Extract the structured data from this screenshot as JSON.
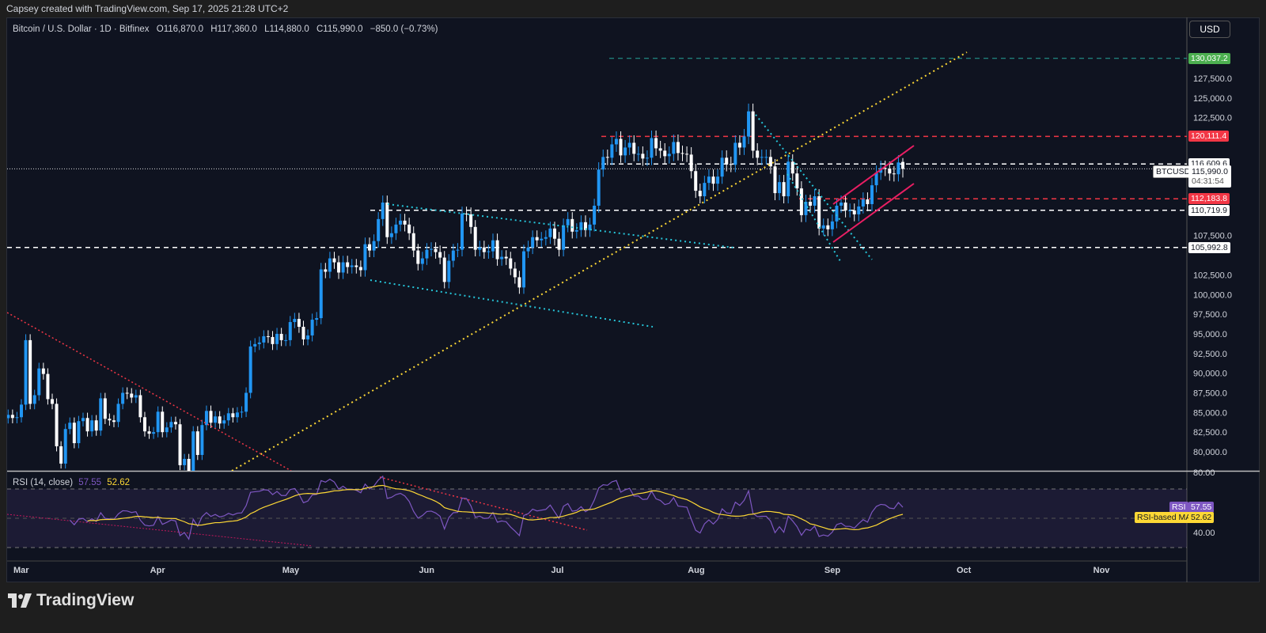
{
  "credit": "Capsey created with TradingView.com, Sep 17, 2025 21:28 UTC+2",
  "legend": {
    "symbol": "Bitcoin / U.S. Dollar · 1D · Bitfinex",
    "open": "O116,870.0",
    "high": "H117,360.0",
    "low": "L114,880.0",
    "close": "C115,990.0",
    "change": "−850.0 (−0.73%)"
  },
  "currency_button": "USD",
  "rsi_legend": {
    "title": "RSI (14, close)",
    "rsi": "57.55",
    "ma": "52.62"
  },
  "price_tag": {
    "symbol": "BTCUSD",
    "price": "115,990.0",
    "countdown": "04:31:54"
  },
  "rsi_tags": {
    "rsi_label": "RSI",
    "rsi_value": "57.55",
    "ma_label": "RSI-based MA",
    "ma_value": "52.62"
  },
  "levels": [
    {
      "price": 130037.2,
      "label": "130,037.2",
      "color": "#4caf50"
    },
    {
      "price": 120111.4,
      "label": "120,111.4",
      "color": "#f23645"
    },
    {
      "price": 116609.6,
      "label": "116,609.6",
      "color": "#ffffff"
    },
    {
      "price": 112183.8,
      "label": "112,183.8",
      "color": "#f23645"
    },
    {
      "price": 110719.9,
      "label": "110,719.9",
      "color": "#ffffff"
    },
    {
      "price": 105992.8,
      "label": "105,992.8",
      "color": "#ffffff"
    }
  ],
  "brand": "TradingView",
  "colors": {
    "up": "#2196f3",
    "down": "#ffffff",
    "rsi": "#7e57c2",
    "rsi_ma": "#fdd835",
    "trend_yellow": "#fdd835",
    "trend_cyan": "#26c6da",
    "trend_red": "#f23645",
    "channel": "#e91e63"
  },
  "chart_data": {
    "type": "candlestick",
    "symbol": "BTCUSD",
    "interval": "1D",
    "start_date": "2025-02-26",
    "close": [
      84700,
      84300,
      84400,
      86000,
      94200,
      86100,
      87200,
      90600,
      89900,
      86700,
      86100,
      80700,
      78500,
      82900,
      83700,
      81100,
      83900,
      84300,
      82600,
      84000,
      82700,
      86800,
      84200,
      84000,
      83800,
      86100,
      87500,
      87400,
      86900,
      87200,
      84400,
      82600,
      82300,
      82500,
      85100,
      82500,
      83100,
      83800,
      83500,
      78300,
      79100,
      76300,
      82600,
      79600,
      83400,
      85200,
      83700,
      84500,
      83600,
      84000,
      84900,
      84400,
      85000,
      85100,
      87500,
      93400,
      93700,
      93900,
      94700,
      94600,
      93700,
      95000,
      94200,
      94200,
      96500,
      96900,
      95900,
      94300,
      94800,
      96800,
      97000,
      103200,
      102900,
      104600,
      104100,
      102800,
      104100,
      103500,
      103700,
      103500,
      103100,
      106400,
      105600,
      106800,
      109600,
      111700,
      107300,
      107800,
      108900,
      109400,
      108900,
      107800,
      105600,
      103900,
      104600,
      105700,
      105800,
      105400,
      104700,
      101600,
      104300,
      105600,
      105700,
      110300,
      110200,
      108600,
      105700,
      106000,
      105400,
      105500,
      106900,
      104500,
      104800,
      104600,
      103300,
      102200,
      100900,
      105500,
      106000,
      107300,
      106900,
      107100,
      107300,
      108400,
      107100,
      105700,
      108800,
      109600,
      108000,
      108200,
      109200,
      108200,
      108900,
      111300,
      115900,
      117500,
      117400,
      119100,
      119800,
      117700,
      118700,
      119300,
      117900,
      117900,
      117300,
      117400,
      119900,
      118600,
      118300,
      117600,
      117900,
      119400,
      118000,
      117900,
      117800,
      115700,
      113200,
      112500,
      114200,
      115000,
      114100,
      115000,
      117400,
      116600,
      116500,
      119300,
      118700,
      120100,
      123300,
      118300,
      117400,
      117500,
      117500,
      116300,
      112900,
      114300,
      112500,
      116900,
      115400,
      113500,
      110100,
      111800,
      111300,
      112500,
      108400,
      108800,
      108300,
      109300,
      111300,
      111700,
      110700,
      110700,
      110200,
      111200,
      112100,
      111500,
      113900,
      115500,
      116100,
      116000,
      115400,
      115300,
      116800,
      115990
    ],
    "last_candle": {
      "open": 116870,
      "high": 117360,
      "low": 114880,
      "close": 115990
    },
    "price_ticks": [
      "127,500.0",
      "125,000.0",
      "122,500.0",
      "107,500.0",
      "102,500.0",
      "100,000.0",
      "97,500.0",
      "95,000.0",
      "92,500.0",
      "90,000.0",
      "87,500.0",
      "85,000.0",
      "82,500.0",
      "80,000.0"
    ],
    "rsi_ticks": [
      "80.00",
      "40.00"
    ],
    "rsi_bands": [
      70,
      30
    ],
    "time_ticks": [
      {
        "label": "Mar",
        "date": "2025-03-01"
      },
      {
        "label": "Apr",
        "date": "2025-04-01"
      },
      {
        "label": "May",
        "date": "2025-05-01"
      },
      {
        "label": "Jun",
        "date": "2025-06-01"
      },
      {
        "label": "Jul",
        "date": "2025-07-01"
      },
      {
        "label": "Aug",
        "date": "2025-08-01"
      },
      {
        "label": "Sep",
        "date": "2025-09-01"
      },
      {
        "label": "Oct",
        "date": "2025-10-01"
      },
      {
        "label": "Nov",
        "date": "2025-11-01"
      }
    ],
    "indicators": [
      {
        "name": "RSI (14, close)"
      },
      {
        "name": "RSI-based MA"
      }
    ]
  }
}
